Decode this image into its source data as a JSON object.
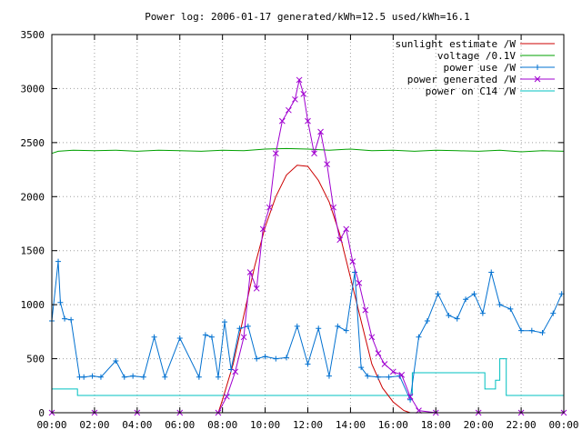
{
  "chart_data": {
    "type": "line",
    "title": "Power log: 2006-01-17 generated/kWh=12.5 used/kWh=16.1",
    "xlabel": "",
    "ylabel": "",
    "x_range_hours": [
      0,
      24
    ],
    "ylim": [
      0,
      3500
    ],
    "grid": true,
    "legend_position": "top-right",
    "x_tick_labels": [
      "00:00",
      "02:00",
      "04:00",
      "06:00",
      "08:00",
      "10:00",
      "12:00",
      "14:00",
      "16:00",
      "18:00",
      "20:00",
      "22:00",
      "00:00"
    ],
    "y_ticks": [
      0,
      500,
      1000,
      1500,
      2000,
      2500,
      3000,
      3500
    ],
    "series": [
      {
        "name": "sunlight estimate /W",
        "color": "#cc0000",
        "marker": "none",
        "x_hours": [
          7.8,
          8.0,
          8.5,
          9.0,
          9.5,
          10.0,
          10.5,
          11.0,
          11.5,
          12.0,
          12.5,
          13.0,
          13.5,
          14.0,
          14.5,
          15.0,
          15.5,
          16.0,
          16.5,
          16.8
        ],
        "values": [
          0,
          120,
          450,
          900,
          1350,
          1720,
          2000,
          2200,
          2290,
          2280,
          2150,
          1950,
          1650,
          1250,
          850,
          450,
          230,
          100,
          20,
          0
        ]
      },
      {
        "name": "voltage /0.1V",
        "color": "#00a000",
        "marker": "none",
        "x_hours": [
          0,
          0.3,
          1,
          2,
          3,
          4,
          5,
          6,
          7,
          8,
          9,
          10,
          11,
          12,
          13,
          14,
          15,
          16,
          17,
          18,
          19,
          20,
          21,
          22,
          23,
          24
        ],
        "values": [
          2400,
          2420,
          2430,
          2425,
          2430,
          2420,
          2430,
          2425,
          2420,
          2430,
          2425,
          2440,
          2445,
          2440,
          2430,
          2440,
          2425,
          2430,
          2420,
          2430,
          2425,
          2420,
          2430,
          2415,
          2425,
          2420
        ]
      },
      {
        "name": "power use /W",
        "color": "#0070d0",
        "marker": "plus",
        "x_hours": [
          0,
          0.3,
          0.4,
          0.6,
          0.9,
          1.3,
          1.5,
          1.9,
          2.3,
          3.0,
          3.4,
          3.8,
          4.3,
          4.8,
          5.3,
          6.0,
          6.9,
          7.2,
          7.5,
          7.8,
          8.1,
          8.4,
          8.8,
          9.2,
          9.6,
          10.0,
          10.5,
          11.0,
          11.5,
          12.0,
          12.5,
          13.0,
          13.4,
          13.8,
          14.2,
          14.5,
          14.8,
          15.3,
          15.8,
          16.3,
          16.8,
          17.2,
          17.6,
          18.1,
          18.6,
          19.0,
          19.4,
          19.8,
          20.2,
          20.6,
          21.0,
          21.5,
          22.0,
          22.5,
          23.0,
          23.5,
          23.9
        ],
        "values": [
          850,
          1400,
          1020,
          870,
          860,
          330,
          330,
          340,
          330,
          480,
          330,
          340,
          330,
          700,
          330,
          690,
          330,
          720,
          700,
          330,
          840,
          400,
          780,
          800,
          500,
          520,
          500,
          510,
          800,
          450,
          780,
          340,
          800,
          760,
          1300,
          420,
          340,
          330,
          330,
          340,
          120,
          700,
          850,
          1100,
          900,
          870,
          1050,
          1100,
          920,
          1300,
          1000,
          960,
          760,
          760,
          740,
          920,
          1100
        ]
      },
      {
        "name": "power generated /W",
        "color": "#a000d0",
        "marker": "cross",
        "x_hours": [
          0,
          2,
          4,
          6,
          7.8,
          8.2,
          8.6,
          9.0,
          9.3,
          9.6,
          9.9,
          10.2,
          10.5,
          10.8,
          11.1,
          11.4,
          11.6,
          11.8,
          12.0,
          12.3,
          12.6,
          12.9,
          13.2,
          13.5,
          13.8,
          14.1,
          14.4,
          14.7,
          15.0,
          15.3,
          15.6,
          16.0,
          16.4,
          16.8,
          17.2,
          18,
          20,
          22,
          24
        ],
        "values": [
          0,
          0,
          0,
          0,
          0,
          150,
          380,
          700,
          1300,
          1150,
          1700,
          1900,
          2400,
          2700,
          2800,
          2900,
          3080,
          2950,
          2700,
          2400,
          2600,
          2300,
          1900,
          1600,
          1700,
          1400,
          1200,
          950,
          700,
          550,
          450,
          380,
          350,
          150,
          20,
          0,
          0,
          0,
          0
        ]
      },
      {
        "name": "power on C14 /W",
        "color": "#00c0c0",
        "marker": "none",
        "x_hours": [
          0,
          1.2,
          1.2,
          16.9,
          16.9,
          20.3,
          20.3,
          20.8,
          20.8,
          21.0,
          21.0,
          21.3,
          21.3,
          22.5,
          22.5,
          24
        ],
        "values": [
          220,
          220,
          160,
          160,
          370,
          370,
          220,
          220,
          300,
          300,
          500,
          500,
          160,
          160,
          160,
          160
        ]
      }
    ]
  }
}
